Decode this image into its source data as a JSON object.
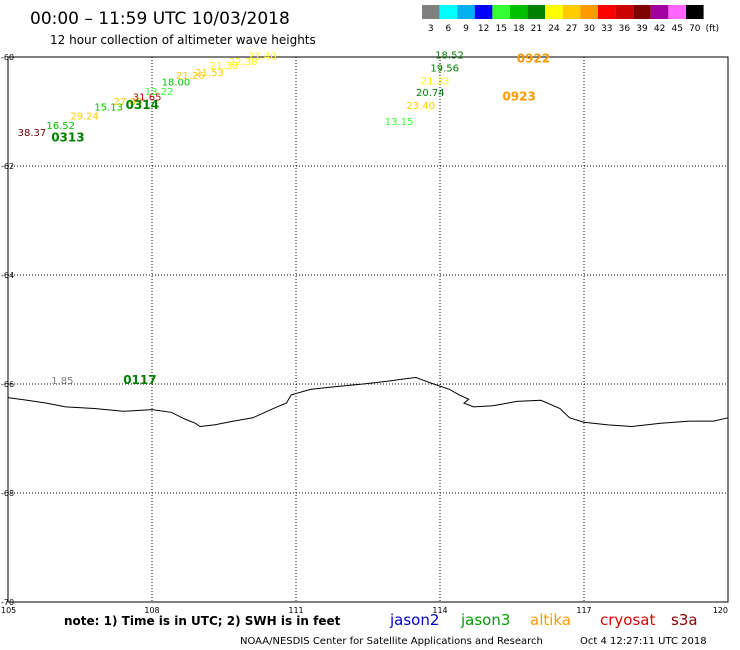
{
  "header": {
    "title": "00:00 – 11:59 UTC 10/03/2018",
    "subtitle": "12 hour collection of altimeter wave heights"
  },
  "legend": {
    "unit": "(ft)",
    "bins": [
      {
        "label": "3",
        "color": "#808080"
      },
      {
        "label": "6",
        "color": "#00ffff"
      },
      {
        "label": "9",
        "color": "#00b0f0"
      },
      {
        "label": "12",
        "color": "#0000ff"
      },
      {
        "label": "15",
        "color": "#33ff33"
      },
      {
        "label": "18",
        "color": "#00c000"
      },
      {
        "label": "21",
        "color": "#008000"
      },
      {
        "label": "24",
        "color": "#ffff00"
      },
      {
        "label": "27",
        "color": "#ffcc00"
      },
      {
        "label": "30",
        "color": "#ff9900"
      },
      {
        "label": "33",
        "color": "#ff0000"
      },
      {
        "label": "36",
        "color": "#cc0000"
      },
      {
        "label": "39",
        "color": "#800000"
      },
      {
        "label": "42",
        "color": "#a000a0"
      },
      {
        "label": "45",
        "color": "#ff66ff"
      },
      {
        "label": "70",
        "color": "#000000"
      }
    ]
  },
  "axes": {
    "lon": {
      "min": 105,
      "max": 120,
      "ticks": [
        "105",
        "108",
        "111",
        "114",
        "117",
        "120"
      ]
    },
    "lat": {
      "min": -70,
      "max": -60,
      "ticks": [
        "-60",
        "-62",
        "-64",
        "-66",
        "-68",
        "-70"
      ]
    }
  },
  "observations": [
    {
      "lon": 105.2,
      "lat": -61.45,
      "value": "38.37",
      "color": "#800000"
    },
    {
      "lon": 105.8,
      "lat": -61.32,
      "value": "16.52",
      "color": "#00c000"
    },
    {
      "lon": 106.3,
      "lat": -61.15,
      "value": "29.24",
      "color": "#ffcc00"
    },
    {
      "lon": 106.8,
      "lat": -60.98,
      "value": "15.13",
      "color": "#00c000"
    },
    {
      "lon": 107.2,
      "lat": -60.88,
      "value": "27.88",
      "color": "#ffcc00"
    },
    {
      "lon": 107.6,
      "lat": -60.8,
      "value": "31.65",
      "color": "#cc0000"
    },
    {
      "lon": 107.85,
      "lat": -60.7,
      "value": "13.22",
      "color": "#33ff33"
    },
    {
      "lon": 108.2,
      "lat": -60.52,
      "value": "18.00",
      "color": "#00c000"
    },
    {
      "lon": 108.5,
      "lat": -60.4,
      "value": "21.26",
      "color": "#ffcc00"
    },
    {
      "lon": 108.9,
      "lat": -60.35,
      "value": "21.53",
      "color": "#ffcc00"
    },
    {
      "lon": 109.2,
      "lat": -60.22,
      "value": "21.38",
      "color": "#ffff00"
    },
    {
      "lon": 109.6,
      "lat": -60.15,
      "value": "22.38",
      "color": "#ffff00"
    },
    {
      "lon": 110.0,
      "lat": -60.05,
      "value": "21.40",
      "color": "#ffff00"
    },
    {
      "lon": 113.9,
      "lat": -60.03,
      "value": "18.52",
      "color": "#008000"
    },
    {
      "lon": 113.8,
      "lat": -60.27,
      "value": "19.56",
      "color": "#008000"
    },
    {
      "lon": 113.6,
      "lat": -60.5,
      "value": "21.33",
      "color": "#ffff00"
    },
    {
      "lon": 113.5,
      "lat": -60.72,
      "value": "20.74",
      "color": "#008000"
    },
    {
      "lon": 113.3,
      "lat": -60.95,
      "value": "23.40",
      "color": "#ffcc00"
    },
    {
      "lon": 112.85,
      "lat": -61.25,
      "value": "13.15",
      "color": "#33ff33"
    },
    {
      "lon": 105.9,
      "lat": -66.0,
      "value": "1.85",
      "color": "#808080"
    }
  ],
  "passes": [
    {
      "lon": 105.9,
      "lat": -61.55,
      "time": "0313",
      "color": "#008000"
    },
    {
      "lon": 107.45,
      "lat": -60.95,
      "time": "0314",
      "color": "#008000"
    },
    {
      "lon": 115.6,
      "lat": -60.1,
      "time": "0922",
      "color": "#ff9900"
    },
    {
      "lon": 115.3,
      "lat": -60.8,
      "time": "0923",
      "color": "#ff9900"
    },
    {
      "lon": 107.4,
      "lat": -66.0,
      "time": "0117",
      "color": "#008000"
    }
  ],
  "coastline": [
    [
      105.0,
      -66.25
    ],
    [
      105.4,
      -66.3
    ],
    [
      105.8,
      -66.35
    ],
    [
      106.2,
      -66.42
    ],
    [
      106.8,
      -66.45
    ],
    [
      107.4,
      -66.5
    ],
    [
      108.0,
      -66.47
    ],
    [
      108.4,
      -66.52
    ],
    [
      108.7,
      -66.65
    ],
    [
      108.9,
      -66.72
    ],
    [
      109.0,
      -66.78
    ],
    [
      109.3,
      -66.75
    ],
    [
      109.7,
      -66.68
    ],
    [
      110.1,
      -66.62
    ],
    [
      110.4,
      -66.5
    ],
    [
      110.6,
      -66.42
    ],
    [
      110.8,
      -66.35
    ],
    [
      110.9,
      -66.2
    ],
    [
      111.3,
      -66.1
    ],
    [
      111.8,
      -66.05
    ],
    [
      112.4,
      -66.0
    ],
    [
      112.9,
      -65.95
    ],
    [
      113.3,
      -65.9
    ],
    [
      113.5,
      -65.88
    ],
    [
      113.8,
      -65.98
    ],
    [
      114.2,
      -66.1
    ],
    [
      114.4,
      -66.2
    ],
    [
      114.6,
      -66.28
    ],
    [
      114.5,
      -66.35
    ],
    [
      114.7,
      -66.42
    ],
    [
      115.1,
      -66.4
    ],
    [
      115.6,
      -66.32
    ],
    [
      116.1,
      -66.3
    ],
    [
      116.5,
      -66.45
    ],
    [
      116.7,
      -66.62
    ],
    [
      117.0,
      -66.7
    ],
    [
      117.5,
      -66.75
    ],
    [
      118.0,
      -66.78
    ],
    [
      118.6,
      -66.72
    ],
    [
      119.2,
      -66.68
    ],
    [
      119.7,
      -66.68
    ],
    [
      120.0,
      -66.62
    ]
  ],
  "footer": {
    "note": "note: 1) Time is in UTC; 2) SWH is in feet",
    "satellites": [
      {
        "name": "jason2",
        "color": "#0000cc"
      },
      {
        "name": "jason3",
        "color": "#00a000"
      },
      {
        "name": "altika",
        "color": "#ff9900"
      },
      {
        "name": "cryosat",
        "color": "#dd0000"
      },
      {
        "name": "s3a",
        "color": "#880000"
      }
    ],
    "credit": "NOAA/NESDIS Center for Satellite Applications and Research",
    "generated": "Oct  4 12:27:11 UTC 2018"
  }
}
